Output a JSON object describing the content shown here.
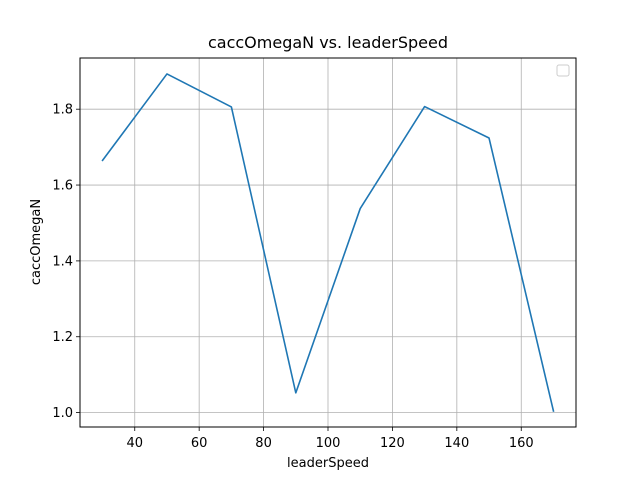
{
  "chart_data": {
    "type": "line",
    "title": "caccOmegaN vs. leaderSpeed",
    "xlabel": "leaderSpeed",
    "ylabel": "caccOmegaN",
    "x": [
      30,
      50,
      70,
      90,
      110,
      130,
      150,
      170
    ],
    "series": [
      {
        "values": [
          1.665,
          1.893,
          1.806,
          1.052,
          1.538,
          1.807,
          1.724,
          1.004
        ],
        "color": "#1f77b4"
      }
    ],
    "xlim": [
      23,
      177
    ],
    "ylim": [
      0.962,
      1.935
    ],
    "xticks": [
      40,
      60,
      80,
      100,
      120,
      140,
      160
    ],
    "yticks": [
      1.0,
      1.2,
      1.4,
      1.6,
      1.8
    ],
    "xtick_labels": [
      "40",
      "60",
      "80",
      "100",
      "120",
      "140",
      "160"
    ],
    "ytick_labels": [
      "1.0",
      "1.2",
      "1.4",
      "1.6",
      "1.8"
    ],
    "grid": true,
    "legend": {
      "placement": "top-right",
      "entries": []
    }
  }
}
